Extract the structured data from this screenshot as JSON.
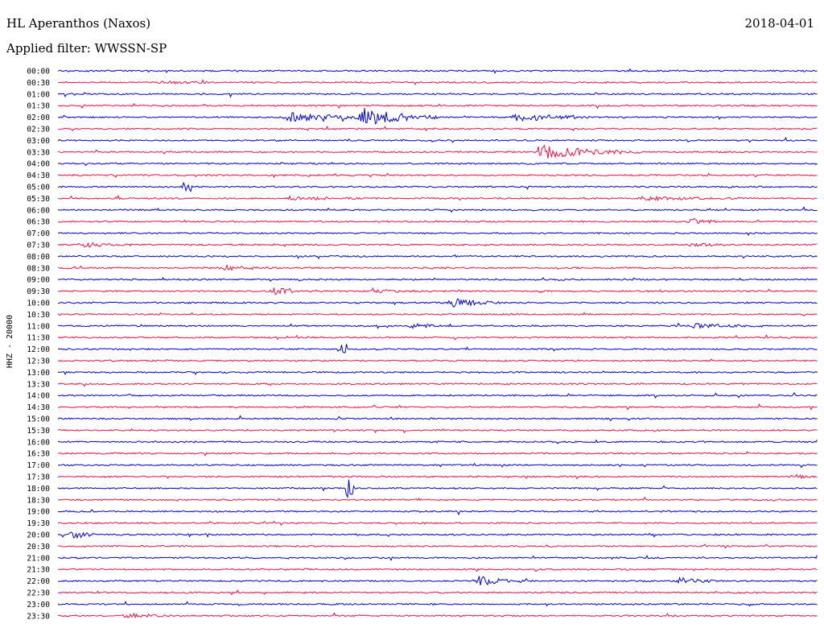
{
  "header": {
    "title": "HL Aperanthos (Naxos)",
    "filter": "Applied filter: WWSSN-SP",
    "date": "2018-04-01"
  },
  "chart_data": {
    "type": "line",
    "title": "HL Aperanthos (Naxos)",
    "subtitle": "Applied filter: WWSSN-SP",
    "date": "2018-04-01",
    "ylabel": "HHZ - 20000",
    "trace_colors": [
      "#0000cc",
      "#ee1144"
    ],
    "rows": [
      "00:00",
      "00:30",
      "01:00",
      "01:30",
      "02:00",
      "02:30",
      "03:00",
      "03:30",
      "04:00",
      "04:30",
      "05:00",
      "05:30",
      "06:00",
      "06:30",
      "07:00",
      "07:30",
      "08:00",
      "08:30",
      "09:00",
      "09:30",
      "10:00",
      "10:30",
      "11:00",
      "11:30",
      "12:00",
      "12:30",
      "13:00",
      "13:30",
      "14:00",
      "14:30",
      "15:00",
      "15:30",
      "16:00",
      "16:30",
      "17:00",
      "17:30",
      "18:00",
      "18:30",
      "19:00",
      "19:30",
      "20:00",
      "20:30",
      "21:00",
      "21:30",
      "22:00",
      "22:30",
      "23:00",
      "23:30"
    ],
    "events": [
      {
        "row": 1,
        "minute": 4,
        "amp": 2,
        "dur": 2
      },
      {
        "row": 4,
        "minute": 9,
        "amp": 6,
        "dur": 4
      },
      {
        "row": 4,
        "minute": 12,
        "amp": 12,
        "dur": 3
      },
      {
        "row": 4,
        "minute": 18,
        "amp": 6,
        "dur": 3
      },
      {
        "row": 7,
        "minute": 19,
        "amp": 9,
        "dur": 4
      },
      {
        "row": 10,
        "minute": 5,
        "amp": 5,
        "dur": 0.3
      },
      {
        "row": 11,
        "minute": 9,
        "amp": 2,
        "dur": 3
      },
      {
        "row": 11,
        "minute": 23,
        "amp": 2,
        "dur": 4
      },
      {
        "row": 13,
        "minute": 25,
        "amp": 5,
        "dur": 1
      },
      {
        "row": 15,
        "minute": 1,
        "amp": 3,
        "dur": 2
      },
      {
        "row": 15,
        "minute": 25,
        "amp": 2,
        "dur": 2
      },
      {
        "row": 17,
        "minute": 6.5,
        "amp": 3,
        "dur": 2
      },
      {
        "row": 19,
        "minute": 8.5,
        "amp": 7,
        "dur": 1
      },
      {
        "row": 19,
        "minute": 12.5,
        "amp": 2,
        "dur": 2
      },
      {
        "row": 20,
        "minute": 15.5,
        "amp": 7,
        "dur": 2
      },
      {
        "row": 22,
        "minute": 14,
        "amp": 4,
        "dur": 1
      },
      {
        "row": 22,
        "minute": 25,
        "amp": 3,
        "dur": 3
      },
      {
        "row": 24,
        "minute": 11.2,
        "amp": 6,
        "dur": 0.2
      },
      {
        "row": 36,
        "minute": 11.5,
        "amp": 11,
        "dur": 0.2
      },
      {
        "row": 35,
        "minute": 29,
        "amp": 3,
        "dur": 1
      },
      {
        "row": 37,
        "minute": 31,
        "amp": 3,
        "dur": 1
      },
      {
        "row": 40,
        "minute": 0.5,
        "amp": 6,
        "dur": 1
      },
      {
        "row": 44,
        "minute": 16.5,
        "amp": 7,
        "dur": 2
      },
      {
        "row": 44,
        "minute": 24.5,
        "amp": 5,
        "dur": 1.5
      },
      {
        "row": 47,
        "minute": 2.5,
        "amp": 3,
        "dur": 2
      }
    ]
  }
}
